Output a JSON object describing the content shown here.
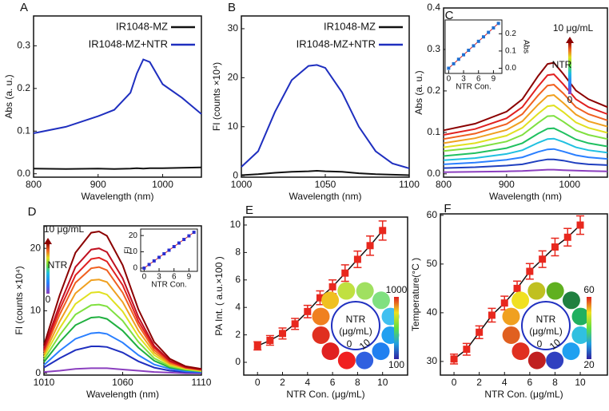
{
  "chart_data": [
    {
      "type": "line",
      "panel_label": "A",
      "x_label": "Wavelength (nm)",
      "y_label": "Abs (a. u.)",
      "legend": "upper right",
      "x": [
        800,
        850,
        900,
        925,
        950,
        960,
        970,
        980,
        1000,
        1030,
        1060
      ],
      "xlim": [
        800,
        1060
      ],
      "xticks": [
        800,
        900,
        1000
      ],
      "ylim": [
        -0.008,
        0.37
      ],
      "yticks": [
        {
          "value": 0,
          "label": "0.0"
        },
        0.1,
        0.2,
        0.3
      ],
      "series": [
        {
          "name": "IR1048-MZ",
          "color": "#111111",
          "values": [
            0.012,
            0.011,
            0.012,
            0.011,
            0.012,
            0.013,
            0.012,
            0.013,
            0.013,
            0.014,
            0.015
          ]
        },
        {
          "name": "IR1048-MZ+NTR",
          "color": "#1f2fbf",
          "values": [
            0.095,
            0.11,
            0.135,
            0.15,
            0.19,
            0.235,
            0.268,
            0.262,
            0.21,
            0.178,
            0.14
          ]
        }
      ]
    },
    {
      "type": "line",
      "panel_label": "B",
      "x_label": "Wavelength (nm)",
      "y_label": "FI (counts ×10⁴)",
      "legend": "upper right",
      "x": [
        1000,
        1010,
        1020,
        1030,
        1040,
        1045,
        1050,
        1060,
        1070,
        1080,
        1090,
        1100
      ],
      "xlim": [
        1000,
        1100
      ],
      "xticks": [
        1000,
        1050,
        1100
      ],
      "ylim": [
        -0.3,
        32.6
      ],
      "yticks": [
        0,
        10,
        20,
        30
      ],
      "series": [
        {
          "name": "IR1048-MZ",
          "color": "#111111",
          "values": [
            0.1,
            0.3,
            0.6,
            0.8,
            0.9,
            1,
            0.9,
            0.8,
            0.5,
            0.3,
            0.2,
            0.1
          ]
        },
        {
          "name": "IR1048-MZ+NTR",
          "color": "#1f2fbf",
          "values": [
            1.8,
            5,
            13,
            19.5,
            22.4,
            22.6,
            22,
            17,
            10,
            5,
            2.5,
            1.5
          ]
        }
      ]
    },
    {
      "type": "line",
      "panel_label": "C",
      "x_label": "Wavelength (nm)",
      "y_label": "Abs (a. u.)",
      "colorbar": {
        "top": "10 μg/mL",
        "middle": "NTR",
        "bottom": "0"
      },
      "x": [
        800,
        850,
        900,
        925,
        950,
        965,
        975,
        990,
        1010,
        1030,
        1060
      ],
      "xlim": [
        800,
        1060
      ],
      "xticks": [
        800,
        900,
        1000
      ],
      "ylim": [
        -0.008,
        0.4
      ],
      "yticks": [
        {
          "value": 0,
          "label": "0.0"
        },
        0.1,
        0.2,
        0.3,
        0.4
      ],
      "series": [
        {
          "color": "#8b3fbf",
          "values": [
            0.004,
            0.005,
            0.006,
            0.007,
            0.009,
            0.01,
            0.01,
            0.009,
            0.008,
            0.007,
            0.006
          ]
        },
        {
          "color": "#1f3fbf",
          "values": [
            0.014,
            0.016,
            0.02,
            0.023,
            0.031,
            0.035,
            0.035,
            0.032,
            0.026,
            0.023,
            0.021
          ]
        },
        {
          "color": "#2a7fff",
          "values": [
            0.023,
            0.027,
            0.034,
            0.04,
            0.053,
            0.059,
            0.06,
            0.054,
            0.045,
            0.04,
            0.036
          ]
        },
        {
          "color": "#20c0e0",
          "values": [
            0.033,
            0.038,
            0.048,
            0.057,
            0.075,
            0.084,
            0.085,
            0.077,
            0.064,
            0.057,
            0.051
          ]
        },
        {
          "color": "#20c060",
          "values": [
            0.043,
            0.05,
            0.062,
            0.074,
            0.097,
            0.109,
            0.11,
            0.099,
            0.083,
            0.074,
            0.066
          ]
        },
        {
          "color": "#80e040",
          "values": [
            0.055,
            0.063,
            0.078,
            0.094,
            0.123,
            0.139,
            0.14,
            0.126,
            0.105,
            0.094,
            0.084
          ]
        },
        {
          "color": "#e0e020",
          "values": [
            0.064,
            0.074,
            0.092,
            0.111,
            0.145,
            0.163,
            0.165,
            0.149,
            0.124,
            0.111,
            0.099
          ]
        },
        {
          "color": "#f0a020",
          "values": [
            0.074,
            0.086,
            0.106,
            0.127,
            0.167,
            0.188,
            0.19,
            0.171,
            0.143,
            0.127,
            0.114
          ]
        },
        {
          "color": "#f06020",
          "values": [
            0.084,
            0.097,
            0.12,
            0.144,
            0.189,
            0.213,
            0.215,
            0.194,
            0.161,
            0.144,
            0.129
          ]
        },
        {
          "color": "#e02020",
          "values": [
            0.094,
            0.108,
            0.134,
            0.161,
            0.211,
            0.238,
            0.24,
            0.216,
            0.18,
            0.161,
            0.144
          ]
        },
        {
          "color": "#8b0000",
          "values": [
            0.105,
            0.121,
            0.15,
            0.18,
            0.236,
            0.265,
            0.268,
            0.241,
            0.201,
            0.18,
            0.161
          ]
        }
      ],
      "inset": {
        "type": "scatter",
        "x_label": "NTR Con.",
        "y_label": "Abs",
        "yaxis_side": "right",
        "line": true,
        "line_color": "#e02020",
        "color": "#1f6fd0",
        "x": [
          0,
          1,
          2,
          3,
          4,
          5,
          6,
          7,
          8,
          9,
          10
        ],
        "values": [
          0,
          0.026,
          0.052,
          0.078,
          0.104,
          0.13,
          0.156,
          0.182,
          0.208,
          0.234,
          0.26
        ],
        "xlim": [
          -0.7,
          10.7
        ],
        "xticks": [
          0,
          3,
          6,
          9
        ],
        "ylim": [
          -0.03,
          0.28
        ],
        "yticks": [
          {
            "value": 0,
            "label": "0.0"
          },
          0.1,
          0.2
        ]
      }
    },
    {
      "type": "line",
      "panel_label": "D",
      "x_label": "Wavelength (nm)",
      "y_label": "FI (counts ×10⁴)",
      "colorbar": {
        "top": "10 μg/mL",
        "middle": "NTR",
        "bottom": "0"
      },
      "x": [
        1010,
        1020,
        1030,
        1040,
        1045,
        1050,
        1060,
        1070,
        1080,
        1090,
        1100,
        1110
      ],
      "xlim": [
        1010,
        1110
      ],
      "xticks": [
        1010,
        1060,
        1110
      ],
      "ylim": [
        -0.3,
        23.6
      ],
      "yticks": [
        0,
        10,
        20
      ],
      "series": [
        {
          "color": "#8b3fbf",
          "values": [
            0.2,
            0.4,
            0.7,
            0.8,
            0.8,
            0.8,
            0.6,
            0.4,
            0.2,
            0.1,
            0.0,
            0.0
          ]
        },
        {
          "color": "#1f2fbf",
          "values": [
            0.9,
            2.4,
            3.7,
            4.3,
            4.3,
            4.2,
            3.3,
            1.9,
            0.9,
            0.4,
            0.2,
            0.1
          ]
        },
        {
          "color": "#2a7fff",
          "values": [
            1.3,
            3.6,
            5.5,
            6.4,
            6.5,
            6.3,
            4.9,
            2.9,
            1.4,
            0.7,
            0.3,
            0.2
          ]
        },
        {
          "color": "#20b040",
          "values": [
            1.8,
            5.0,
            7.7,
            8.9,
            9.0,
            8.7,
            6.8,
            4.1,
            2.0,
            0.9,
            0.5,
            0.3
          ]
        },
        {
          "color": "#80e040",
          "values": [
            2.2,
            6.1,
            9.4,
            10.9,
            11.0,
            10.7,
            8.4,
            5.0,
            2.4,
            1.1,
            0.6,
            0.3
          ]
        },
        {
          "color": "#e0e020",
          "values": [
            2.6,
            7.2,
            11.1,
            12.9,
            13.0,
            12.6,
            9.9,
            5.9,
            2.9,
            1.3,
            0.7,
            0.4
          ]
        },
        {
          "color": "#f0a020",
          "values": [
            3.0,
            8.3,
            12.8,
            14.9,
            15.0,
            14.6,
            11.4,
            6.8,
            3.3,
            1.5,
            0.8,
            0.5
          ]
        },
        {
          "color": "#f06020",
          "values": [
            3.4,
            9.4,
            14.5,
            16.8,
            17.0,
            16.5,
            12.9,
            7.7,
            3.7,
            1.7,
            0.9,
            0.5
          ]
        },
        {
          "color": "#e02020",
          "values": [
            3.7,
            10.2,
            15.7,
            18.3,
            18.5,
            17.9,
            14.1,
            8.3,
            4.1,
            1.9,
            0.9,
            0.6
          ]
        },
        {
          "color": "#c01020",
          "values": [
            4.0,
            11.0,
            17.0,
            19.8,
            20.0,
            19.4,
            15.2,
            9.0,
            4.4,
            2.0,
            1.0,
            0.6
          ]
        },
        {
          "color": "#8b0000",
          "values": [
            4.5,
            12.5,
            19.3,
            22.5,
            22.7,
            22.0,
            17.3,
            10.2,
            5.0,
            2.3,
            1.1,
            0.7
          ]
        }
      ],
      "inset": {
        "type": "scatter",
        "x_label": "NTR Con.",
        "y_label": "FI",
        "yaxis_side": "left",
        "line": true,
        "line_color": "#e02020",
        "color": "#2a2fd0",
        "x": [
          0,
          1,
          2,
          3,
          4,
          5,
          6,
          7,
          8,
          9,
          10
        ],
        "values": [
          0,
          2.2,
          4.4,
          6.6,
          8.8,
          11,
          13.2,
          15.4,
          17.6,
          19.8,
          22
        ],
        "xlim": [
          -0.7,
          10.7
        ],
        "xticks": [
          0,
          3,
          6,
          9
        ],
        "ylim": [
          -2,
          24
        ],
        "yticks": [
          0,
          10,
          20
        ]
      }
    },
    {
      "type": "scatter",
      "panel_label": "E",
      "x_label": "NTR Con. (μg/mL)",
      "y_label": "PA Int. ( a.u.×100 )",
      "line": true,
      "line_color": "#111111",
      "color": "#e8281e",
      "image_labels": {
        "center_top": "NTR",
        "center_bottom": "(μg/mL)",
        "start": "0",
        "end": "10",
        "bar_top": "1000",
        "bar_bottom": "100"
      },
      "x": [
        0,
        1,
        2,
        3,
        4,
        5,
        6,
        7,
        8,
        9,
        10
      ],
      "values": [
        1.2,
        1.6,
        2.1,
        2.8,
        3.7,
        4.7,
        5.5,
        6.5,
        7.5,
        8.5,
        9.6
      ],
      "errors": [
        0.3,
        0.35,
        0.4,
        0.4,
        0.45,
        0.5,
        0.5,
        0.6,
        0.6,
        0.7,
        0.7
      ],
      "xlim": [
        -1.1,
        12
      ],
      "xticks": [
        0,
        2,
        4,
        6,
        8,
        10
      ],
      "ylim": [
        -0.93,
        10.58
      ],
      "yticks": [
        0,
        2,
        4,
        6,
        8,
        10
      ]
    },
    {
      "type": "scatter",
      "panel_label": "F",
      "x_label": "NTR Con. (μg/mL)",
      "y_label": "Temperature(°C )",
      "line": true,
      "line_color": "#111111",
      "color": "#e8281e",
      "image_labels": {
        "center_top": "NTR",
        "center_bottom": "(μg/mL)",
        "start": "0",
        "end": "10",
        "bar_top": "60",
        "bar_bottom": "20"
      },
      "x": [
        0,
        1,
        2,
        3,
        4,
        5,
        6,
        7,
        8,
        9,
        10
      ],
      "values": [
        30.5,
        32.5,
        36,
        39.5,
        42,
        45,
        48.5,
        51,
        53.5,
        55.5,
        58
      ],
      "errors": [
        1,
        1.2,
        1.3,
        1.4,
        1.4,
        1.5,
        1.6,
        1.7,
        1.8,
        1.8,
        1.9
      ],
      "xlim": [
        -1.08,
        12.15
      ],
      "xticks": [
        0,
        2,
        4,
        6,
        8,
        10
      ],
      "ylim": [
        27.2,
        60.3
      ],
      "yticks": [
        30,
        40,
        50,
        60
      ]
    }
  ]
}
